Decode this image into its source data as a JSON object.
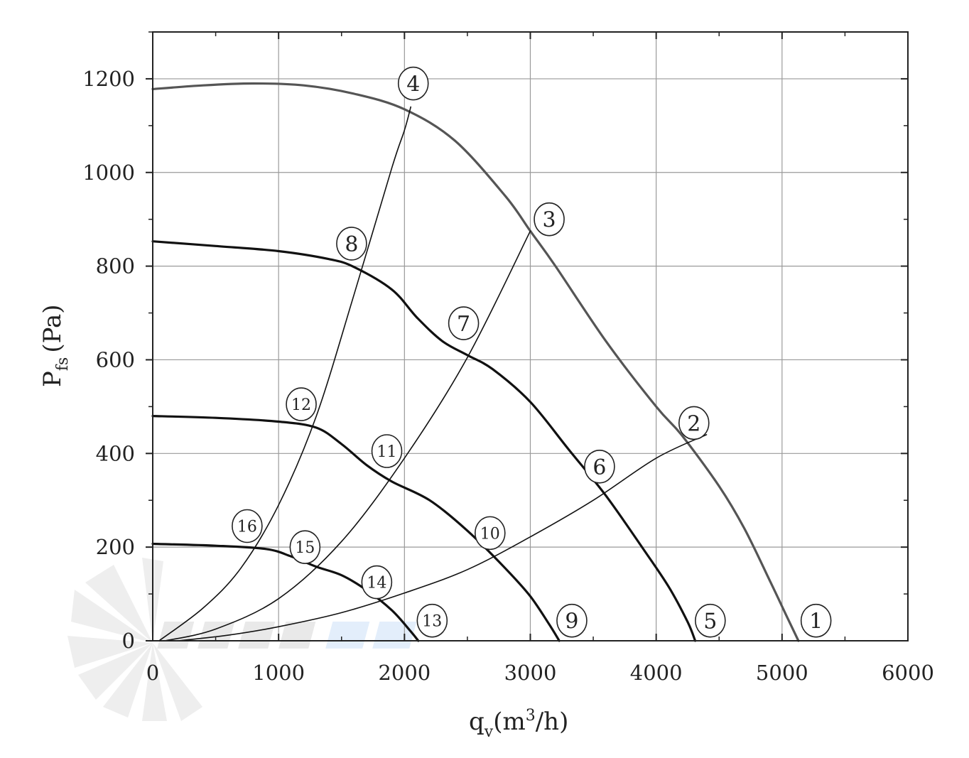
{
  "chart_data": {
    "type": "line",
    "title": "",
    "xlabel": {
      "main": "q",
      "sub": "v",
      "unit_text": "(m",
      "unit_sup": "3",
      "unit_tail": "/h)"
    },
    "ylabel": {
      "main": "P",
      "sub": "fs",
      "unit_text": "(Pa)"
    },
    "xlim": [
      0,
      6000
    ],
    "ylim": [
      0,
      1300
    ],
    "x_ticks": [
      0,
      1000,
      2000,
      3000,
      4000,
      5000,
      6000
    ],
    "y_ticks": [
      0,
      200,
      400,
      600,
      800,
      1000,
      1200
    ],
    "grid": true,
    "series": [
      {
        "name": "1-4",
        "color": "#555555",
        "x": [
          0,
          400,
          800,
          1200,
          1600,
          2000,
          2400,
          2800,
          3000,
          3200,
          3600,
          4000,
          4200,
          4500,
          4700,
          4900,
          5050,
          5130
        ],
        "y": [
          1178,
          1186,
          1190,
          1186,
          1168,
          1135,
          1068,
          950,
          875,
          800,
          640,
          500,
          440,
          330,
          240,
          130,
          45,
          0
        ]
      },
      {
        "name": "5-8",
        "color": "#111111",
        "x": [
          0,
          500,
          1000,
          1400,
          1600,
          1900,
          2100,
          2300,
          2500,
          2700,
          3000,
          3300,
          3600,
          3900,
          4100,
          4250,
          4310
        ],
        "y": [
          853,
          843,
          832,
          815,
          798,
          750,
          690,
          640,
          610,
          580,
          510,
          410,
          310,
          195,
          115,
          40,
          0
        ]
      },
      {
        "name": "9-12",
        "color": "#111111",
        "x": [
          0,
          500,
          1000,
          1300,
          1500,
          1700,
          1900,
          2200,
          2500,
          2800,
          3000,
          3150,
          3230
        ],
        "y": [
          480,
          476,
          468,
          455,
          420,
          375,
          340,
          300,
          235,
          155,
          95,
          35,
          0
        ]
      },
      {
        "name": "13-16",
        "color": "#111111",
        "x": [
          0,
          500,
          900,
          1100,
          1300,
          1500,
          1700,
          1900,
          2050,
          2110
        ],
        "y": [
          207,
          203,
          196,
          180,
          158,
          140,
          108,
          65,
          20,
          0
        ]
      },
      {
        "name": "2-10-14",
        "color": "#111111",
        "x": [
          200,
          600,
          1000,
          1500,
          2000,
          2500,
          3000,
          3500,
          4000,
          4400
        ],
        "y": [
          0,
          12,
          30,
          60,
          102,
          152,
          222,
          300,
          390,
          440
        ]
      },
      {
        "name": "3-7-11-15",
        "color": "#111111",
        "x": [
          100,
          500,
          1000,
          1500,
          2000,
          2500,
          3000
        ],
        "y": [
          0,
          25,
          90,
          212,
          390,
          605,
          875
        ]
      },
      {
        "name": "4-8-12-16",
        "color": "#111111",
        "x": [
          50,
          400,
          700,
          1000,
          1300,
          1600,
          1900,
          2000,
          2050
        ],
        "y": [
          0,
          70,
          155,
          290,
          480,
          740,
          1010,
          1090,
          1140
        ]
      }
    ],
    "markers": [
      {
        "label": "1",
        "x": 5270,
        "y": 43
      },
      {
        "label": "2",
        "x": 4300,
        "y": 465
      },
      {
        "label": "3",
        "x": 3150,
        "y": 900
      },
      {
        "label": "4",
        "x": 2070,
        "y": 1190
      },
      {
        "label": "5",
        "x": 4430,
        "y": 43
      },
      {
        "label": "6",
        "x": 3550,
        "y": 372
      },
      {
        "label": "7",
        "x": 2470,
        "y": 678
      },
      {
        "label": "8",
        "x": 1580,
        "y": 848
      },
      {
        "label": "9",
        "x": 3330,
        "y": 43
      },
      {
        "label": "10",
        "x": 2680,
        "y": 230
      },
      {
        "label": "11",
        "x": 1860,
        "y": 405
      },
      {
        "label": "12",
        "x": 1180,
        "y": 505
      },
      {
        "label": "13",
        "x": 2220,
        "y": 43
      },
      {
        "label": "14",
        "x": 1780,
        "y": 125
      },
      {
        "label": "15",
        "x": 1210,
        "y": 200
      },
      {
        "label": "16",
        "x": 750,
        "y": 245
      }
    ]
  }
}
